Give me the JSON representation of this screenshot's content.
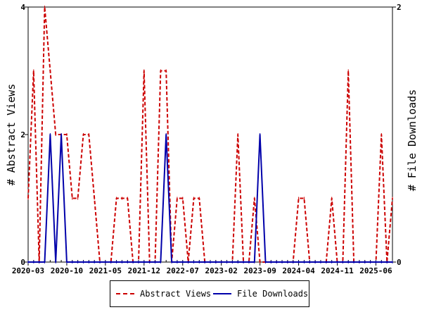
{
  "chart_data": {
    "type": "line",
    "title": "",
    "xlabel": "",
    "ylabel": "# Abstract Views",
    "ylabel_right": "# File Downloads",
    "x_tick_labels": [
      "2020-03",
      "2020-10",
      "2021-05",
      "2021-12",
      "2022-07",
      "2023-02",
      "2023-09",
      "2024-04",
      "2024-11",
      "2025-06"
    ],
    "y_left_ticks": [
      "0",
      "2",
      "4"
    ],
    "y_right_ticks": [
      "0",
      "2"
    ],
    "y_left_range": [
      0,
      4
    ],
    "y_right_range": [
      0,
      2
    ],
    "grid": false,
    "legend_position": "bottom",
    "x": [
      "2020-03",
      "2020-04",
      "2020-05",
      "2020-06",
      "2020-07",
      "2020-08",
      "2020-09",
      "2020-10",
      "2020-11",
      "2020-12",
      "2021-01",
      "2021-02",
      "2021-03",
      "2021-04",
      "2021-05",
      "2021-06",
      "2021-07",
      "2021-08",
      "2021-09",
      "2021-10",
      "2021-11",
      "2021-12",
      "2022-01",
      "2022-02",
      "2022-03",
      "2022-04",
      "2022-05",
      "2022-06",
      "2022-07",
      "2022-08",
      "2022-09",
      "2022-10",
      "2022-11",
      "2022-12",
      "2023-01",
      "2023-02",
      "2023-03",
      "2023-04",
      "2023-05",
      "2023-06",
      "2023-07",
      "2023-08",
      "2023-09",
      "2023-10",
      "2023-11",
      "2023-12",
      "2024-01",
      "2024-02",
      "2024-03",
      "2024-04",
      "2024-05",
      "2024-06",
      "2024-07",
      "2024-08",
      "2024-09",
      "2024-10",
      "2024-11",
      "2024-12",
      "2025-01",
      "2025-02",
      "2025-03",
      "2025-04",
      "2025-05",
      "2025-06",
      "2025-07",
      "2025-08",
      "2025-09"
    ],
    "series": [
      {
        "name": "Abstract Views",
        "axis": "left",
        "color": "#cc0000",
        "dash": true,
        "values": [
          1,
          3,
          0,
          4,
          3,
          2,
          2,
          2,
          1,
          1,
          2,
          2,
          1,
          0,
          0,
          0,
          1,
          1,
          1,
          0,
          0,
          3,
          0,
          0,
          3,
          3,
          0,
          1,
          1,
          0,
          1,
          1,
          0,
          0,
          0,
          0,
          0,
          0,
          2,
          0,
          0,
          1,
          0,
          0,
          0,
          0,
          0,
          0,
          0,
          1,
          1,
          0,
          0,
          0,
          0,
          1,
          0,
          0,
          3,
          0,
          0,
          0,
          0,
          0,
          2,
          0,
          1
        ]
      },
      {
        "name": "File Downloads",
        "axis": "right",
        "color": "#0000aa",
        "dash": false,
        "values": [
          0,
          0,
          0,
          0,
          1,
          0,
          1,
          0,
          0,
          0,
          0,
          0,
          0,
          0,
          0,
          0,
          0,
          0,
          0,
          0,
          0,
          0,
          0,
          0,
          0,
          1,
          0,
          0,
          0,
          0,
          0,
          0,
          0,
          0,
          0,
          0,
          0,
          0,
          0,
          0,
          0,
          0,
          1,
          0,
          0,
          0,
          0,
          0,
          0,
          0,
          0,
          0,
          0,
          0,
          0,
          0,
          0,
          0,
          0,
          0,
          0,
          0,
          0,
          0,
          0,
          0,
          0
        ]
      }
    ]
  },
  "legend": {
    "items": [
      {
        "label": "Abstract Views",
        "color": "#cc0000"
      },
      {
        "label": "File Downloads",
        "color": "#0000aa"
      }
    ]
  }
}
